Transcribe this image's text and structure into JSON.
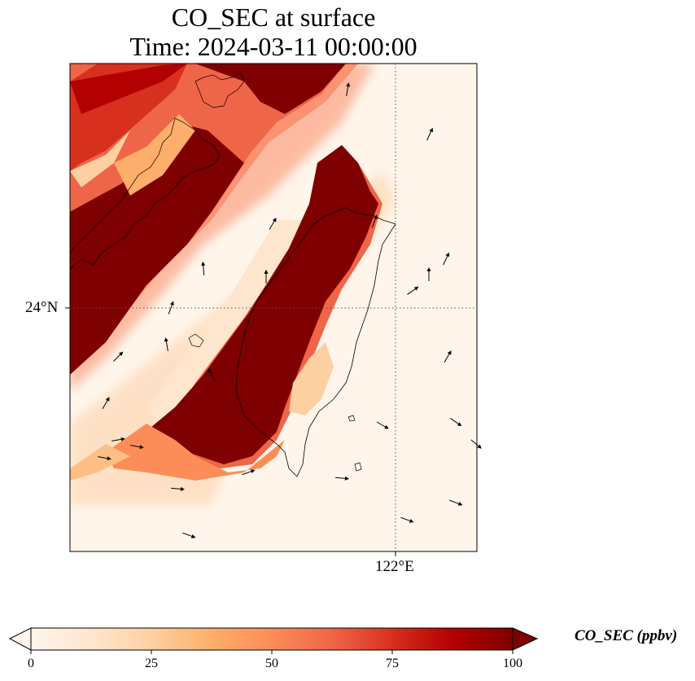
{
  "figure": {
    "title_line1": "CO_SEC at surface",
    "title_line2": "Time: 2024-03-11 00:00:00"
  },
  "map": {
    "gridlines": {
      "latitude_label": "24°N",
      "longitude_label": "122°E",
      "style": "dotted"
    },
    "field_colors": {
      "low": "#fff5eb",
      "mid": "#fdbf86",
      "high": "#7f0000"
    },
    "coastline_color": "#000000",
    "wind_vector_icon": "arrow-icon"
  },
  "colorbar": {
    "label": "CO_SEC (ppbv)",
    "ticks": [
      "0",
      "25",
      "50",
      "75",
      "100"
    ],
    "range": [
      0,
      100
    ],
    "extend": "both",
    "colormap": [
      "#fff5eb",
      "#fee6ce",
      "#fdd0a2",
      "#fdae6b",
      "#fc8d59",
      "#ef6548",
      "#d7301f",
      "#b30000",
      "#7f0000"
    ]
  }
}
